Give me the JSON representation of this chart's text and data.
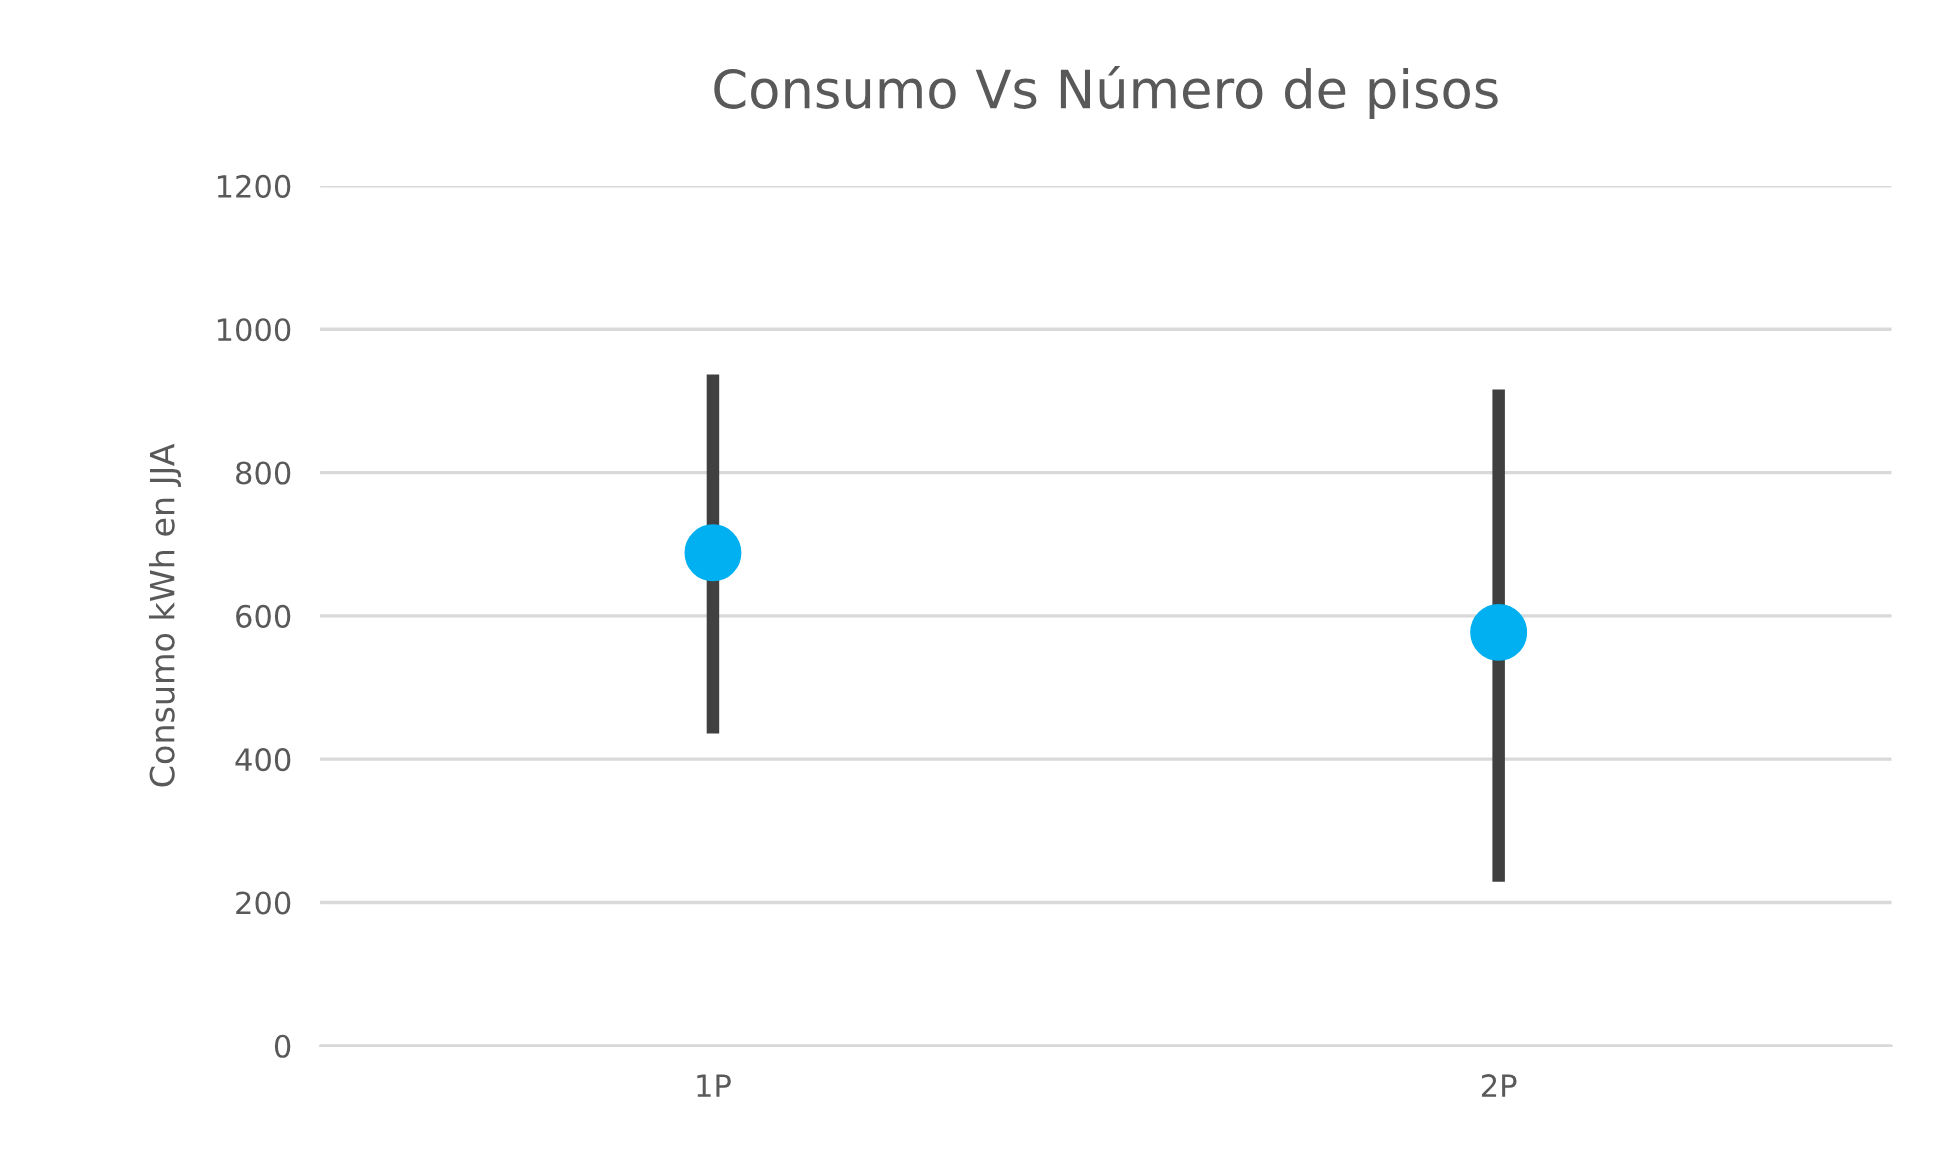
{
  "chart_data": {
    "type": "scatter",
    "title": "Consumo Vs Número de pisos",
    "ylabel": "Consumo kWh en JJA",
    "categories": [
      "1P",
      "2P"
    ],
    "series": [
      {
        "color": "#00b0f0",
        "values": [
          688,
          577
        ],
        "errors": [
          [
            436,
            937
          ],
          [
            229,
            916
          ]
        ]
      }
    ],
    "ylim": [
      0,
      1200
    ],
    "yticks": [
      0,
      200,
      400,
      600,
      800,
      1000,
      1200
    ],
    "grid": "y",
    "marker": "circle"
  }
}
